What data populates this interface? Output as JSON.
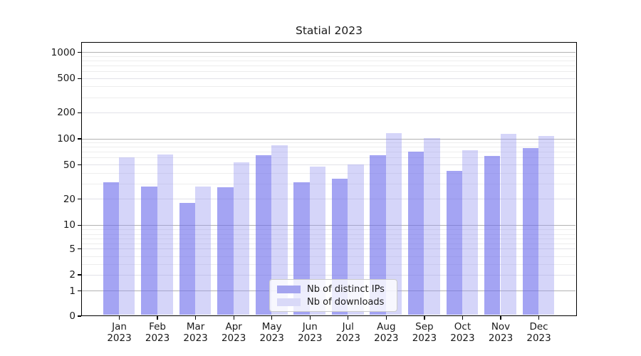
{
  "chart_data": {
    "type": "bar",
    "title": "Statial 2023",
    "categories": [
      "Jan",
      "Feb",
      "Mar",
      "Apr",
      "May",
      "Jun",
      "Jul",
      "Aug",
      "Sep",
      "Oct",
      "Nov",
      "Dec"
    ],
    "year_label": "2023",
    "series": [
      {
        "name": "Nb of distinct IPs",
        "legend_color": "#a4a4ef",
        "fill": "rgba(108,108,235,0.62)",
        "values": [
          31,
          28,
          18,
          27,
          64,
          31,
          34,
          64,
          70,
          42,
          63,
          77
        ]
      },
      {
        "name": "Nb of downloads",
        "legend_color": "#d9d9f8",
        "fill": "rgba(150,150,240,0.40)",
        "values": [
          61,
          65,
          28,
          53,
          83,
          47,
          50,
          116,
          101,
          73,
          114,
          107
        ]
      }
    ],
    "yticks": [
      "0",
      "1",
      "2",
      "5",
      "10",
      "20",
      "50",
      "100",
      "200",
      "500",
      "1000"
    ],
    "yscale": "symlog",
    "ylim": [
      0,
      1400
    ],
    "grid": true,
    "legend_position": "lower center",
    "axis_color": "#000000",
    "major_grid_color": "#b2b2b2",
    "minor_grid_color": "#ededed"
  }
}
